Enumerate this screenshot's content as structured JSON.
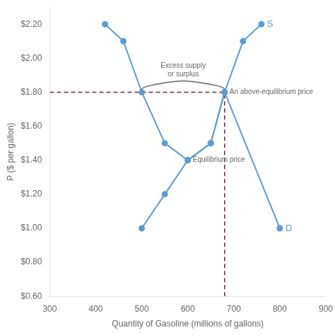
{
  "chart_data": {
    "type": "line",
    "xlabel": "Quantity of Gasoline (millions of gallons)",
    "ylabel": "P ($ per gallon)",
    "series": [
      {
        "name": "S",
        "color": "#5b9bd5",
        "marker": "o",
        "line_style": "solid",
        "x": [
          500,
          550,
          600,
          650,
          680,
          720,
          760
        ],
        "values": [
          1.0,
          1.2,
          1.4,
          1.5,
          1.8,
          2.1,
          2.2
        ]
      },
      {
        "name": "D",
        "color": "#5b9bd5",
        "marker": "o",
        "line_style": "solid",
        "x": [
          420,
          460,
          500,
          550,
          600,
          650,
          680,
          800
        ],
        "values": [
          2.2,
          2.1,
          1.8,
          1.5,
          1.4,
          1.5,
          1.8,
          1.0
        ]
      },
      {
        "color": "#7b1c3e",
        "line_style": "dashed",
        "x": [
          300,
          680
        ],
        "values": [
          1.8,
          1.8
        ]
      },
      {
        "color": "#7b1c3e",
        "line_style": "dashed",
        "x": [
          680,
          680
        ],
        "values": [
          0.6,
          1.8
        ]
      }
    ],
    "annotations": [
      {
        "text": "Equilibrium price",
        "x": 600,
        "y": 1.4
      },
      {
        "text": "An above-equilibrium price",
        "x": 680,
        "y": 1.8
      },
      {
        "text": [
          "Excess supply",
          "or surplus"
        ],
        "x": [
          500,
          680
        ],
        "y": 1.8
      }
    ],
    "xlim": [
      300,
      900
    ],
    "ylim": [
      0.6,
      2.3
    ],
    "xticks": [
      300,
      400,
      500,
      600,
      700,
      800,
      900
    ],
    "yticks": [
      {
        "value": 0.6,
        "label": "$0.60"
      },
      {
        "value": 0.8,
        "label": "$0.80"
      },
      {
        "value": 1.0,
        "label": "$1.00"
      },
      {
        "value": 1.2,
        "label": "$1.20"
      },
      {
        "value": 1.4,
        "label": "$1.40"
      },
      {
        "value": 1.6,
        "label": "$1.60"
      },
      {
        "value": 1.8,
        "label": "$1.80"
      },
      {
        "value": 2.0,
        "label": "$2.00"
      },
      {
        "value": 2.2,
        "label": "$2.20"
      }
    ],
    "grid": false
  }
}
